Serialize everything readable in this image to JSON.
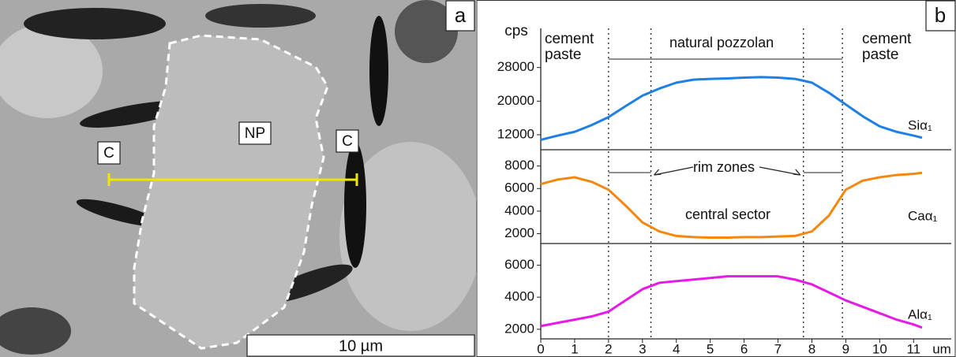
{
  "image": {
    "panel_label": "a",
    "labels": [
      "NP",
      "C",
      "C"
    ],
    "scale_bar": "10 µm"
  },
  "panel_label": "b",
  "y_label": "cps",
  "annotations": [
    "cement paste",
    "natural pozzolan",
    "cement paste",
    "rim zones",
    "central sector"
  ],
  "vlines": [
    2,
    3.25,
    7.75,
    8.9
  ],
  "chart_data": [
    {
      "type": "line",
      "x": [
        0,
        0.5,
        1,
        1.5,
        2,
        2.5,
        3,
        3.5,
        4,
        4.5,
        5,
        5.5,
        6,
        6.5,
        7,
        7.5,
        8,
        8.5,
        9,
        9.5,
        10,
        10.5,
        11,
        11.25
      ],
      "series": [
        {
          "name": "Siα₁",
          "color": "#1e7fe6",
          "values": [
            10800,
            11800,
            12700,
            14300,
            16200,
            18800,
            21300,
            23000,
            24400,
            25100,
            25300,
            25400,
            25600,
            25700,
            25600,
            25300,
            24400,
            22000,
            19200,
            16400,
            14000,
            12700,
            11800,
            11300
          ]
        }
      ],
      "ylim": [
        9000,
        30000
      ],
      "yticks": [
        12000,
        20000,
        28000
      ]
    },
    {
      "type": "line",
      "x": [
        0,
        0.5,
        1,
        1.5,
        2,
        2.5,
        3,
        3.5,
        4,
        4.5,
        5,
        5.5,
        6,
        6.5,
        7,
        7.5,
        8,
        8.5,
        9,
        9.5,
        10,
        10.5,
        11,
        11.25
      ],
      "series": [
        {
          "name": "Caα₁",
          "color": "#f5870f",
          "values": [
            6400,
            6800,
            7000,
            6600,
            5900,
            4500,
            3000,
            2200,
            1800,
            1700,
            1650,
            1650,
            1700,
            1700,
            1750,
            1800,
            2200,
            3600,
            5900,
            6700,
            7000,
            7200,
            7300,
            7400
          ]
        }
      ],
      "ylim": [
        1200,
        9300
      ],
      "yticks": [
        2000,
        4000,
        6000,
        8000
      ]
    },
    {
      "type": "line",
      "x": [
        0,
        0.5,
        1,
        1.5,
        2,
        2.5,
        3,
        3.5,
        4,
        4.5,
        5,
        5.5,
        6,
        6.5,
        7,
        7.5,
        8,
        8.5,
        9,
        9.5,
        10,
        10.5,
        11,
        11.25
      ],
      "series": [
        {
          "name": "Alα₁",
          "color": "#e619e6",
          "values": [
            2200,
            2400,
            2600,
            2800,
            3100,
            3800,
            4500,
            4900,
            5000,
            5100,
            5200,
            5300,
            5300,
            5300,
            5300,
            5100,
            4800,
            4300,
            3800,
            3400,
            3000,
            2600,
            2300,
            2100
          ]
        }
      ],
      "ylim": [
        1400,
        7300
      ],
      "yticks": [
        2000,
        4000,
        6000
      ],
      "xlim": [
        0,
        11.25
      ],
      "xticks": [
        0,
        1,
        2,
        3,
        4,
        5,
        6,
        7,
        8,
        9,
        10,
        11
      ],
      "x_label": "um"
    }
  ]
}
